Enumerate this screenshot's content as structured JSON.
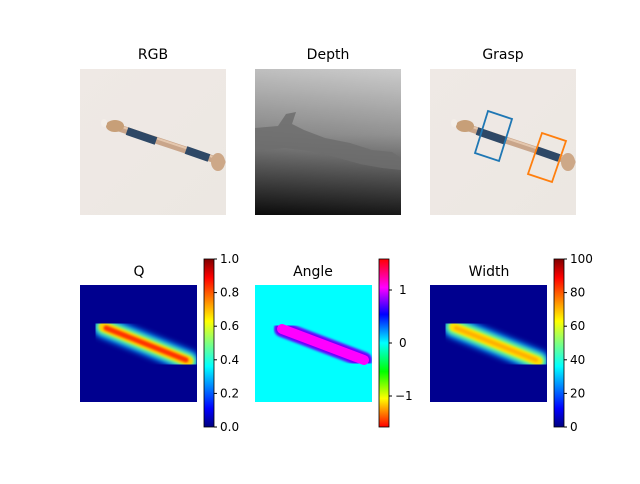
{
  "panels": {
    "rgb": {
      "title": "RGB"
    },
    "depth": {
      "title": "Depth"
    },
    "grasp": {
      "title": "Grasp",
      "box_colors": [
        "#1f77b4",
        "#ff7f0e"
      ]
    },
    "q": {
      "title": "Q",
      "colormap": "jet",
      "range": [
        0.0,
        1.0
      ],
      "ticks": [
        "0.0",
        "0.2",
        "0.4",
        "0.6",
        "0.8",
        "1.0"
      ]
    },
    "angle": {
      "title": "Angle",
      "colormap": "hsv",
      "range": [
        -1.5708,
        1.5708
      ],
      "ticks": [
        "−1",
        "0",
        "1"
      ]
    },
    "width": {
      "title": "Width",
      "colormap": "jet",
      "range": [
        0,
        100
      ],
      "ticks": [
        "0",
        "20",
        "40",
        "60",
        "80",
        "100"
      ]
    }
  }
}
